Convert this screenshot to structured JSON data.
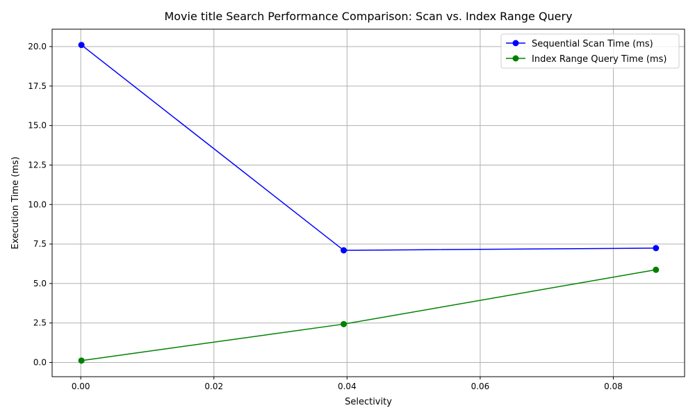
{
  "chart_data": {
    "type": "line",
    "title": "Movie title Search Performance Comparison: Scan vs. Index Range Query",
    "xlabel": "Selectivity",
    "ylabel": "Execution Time (ms)",
    "xlim": [
      -0.0043,
      0.0907
    ],
    "ylim": [
      -0.9,
      21.1
    ],
    "x_ticks": [
      0.0,
      0.02,
      0.04,
      0.06,
      0.08
    ],
    "x_tick_labels": [
      "0.00",
      "0.02",
      "0.04",
      "0.06",
      "0.08"
    ],
    "y_ticks": [
      0.0,
      2.5,
      5.0,
      7.5,
      10.0,
      12.5,
      15.0,
      17.5,
      20.0
    ],
    "y_tick_labels": [
      "0.0",
      "2.5",
      "5.0",
      "7.5",
      "10.0",
      "12.5",
      "15.0",
      "17.5",
      "20.0"
    ],
    "grid": true,
    "legend_position": "top-right",
    "x": [
      0.0001,
      0.0395,
      0.0864
    ],
    "series": [
      {
        "name": "Sequential Scan Time (ms)",
        "color": "#0000ff",
        "values": [
          20.1,
          7.1,
          7.24
        ]
      },
      {
        "name": "Index Range Query Time (ms)",
        "color": "#008000",
        "values": [
          0.12,
          2.43,
          5.87
        ]
      }
    ]
  }
}
